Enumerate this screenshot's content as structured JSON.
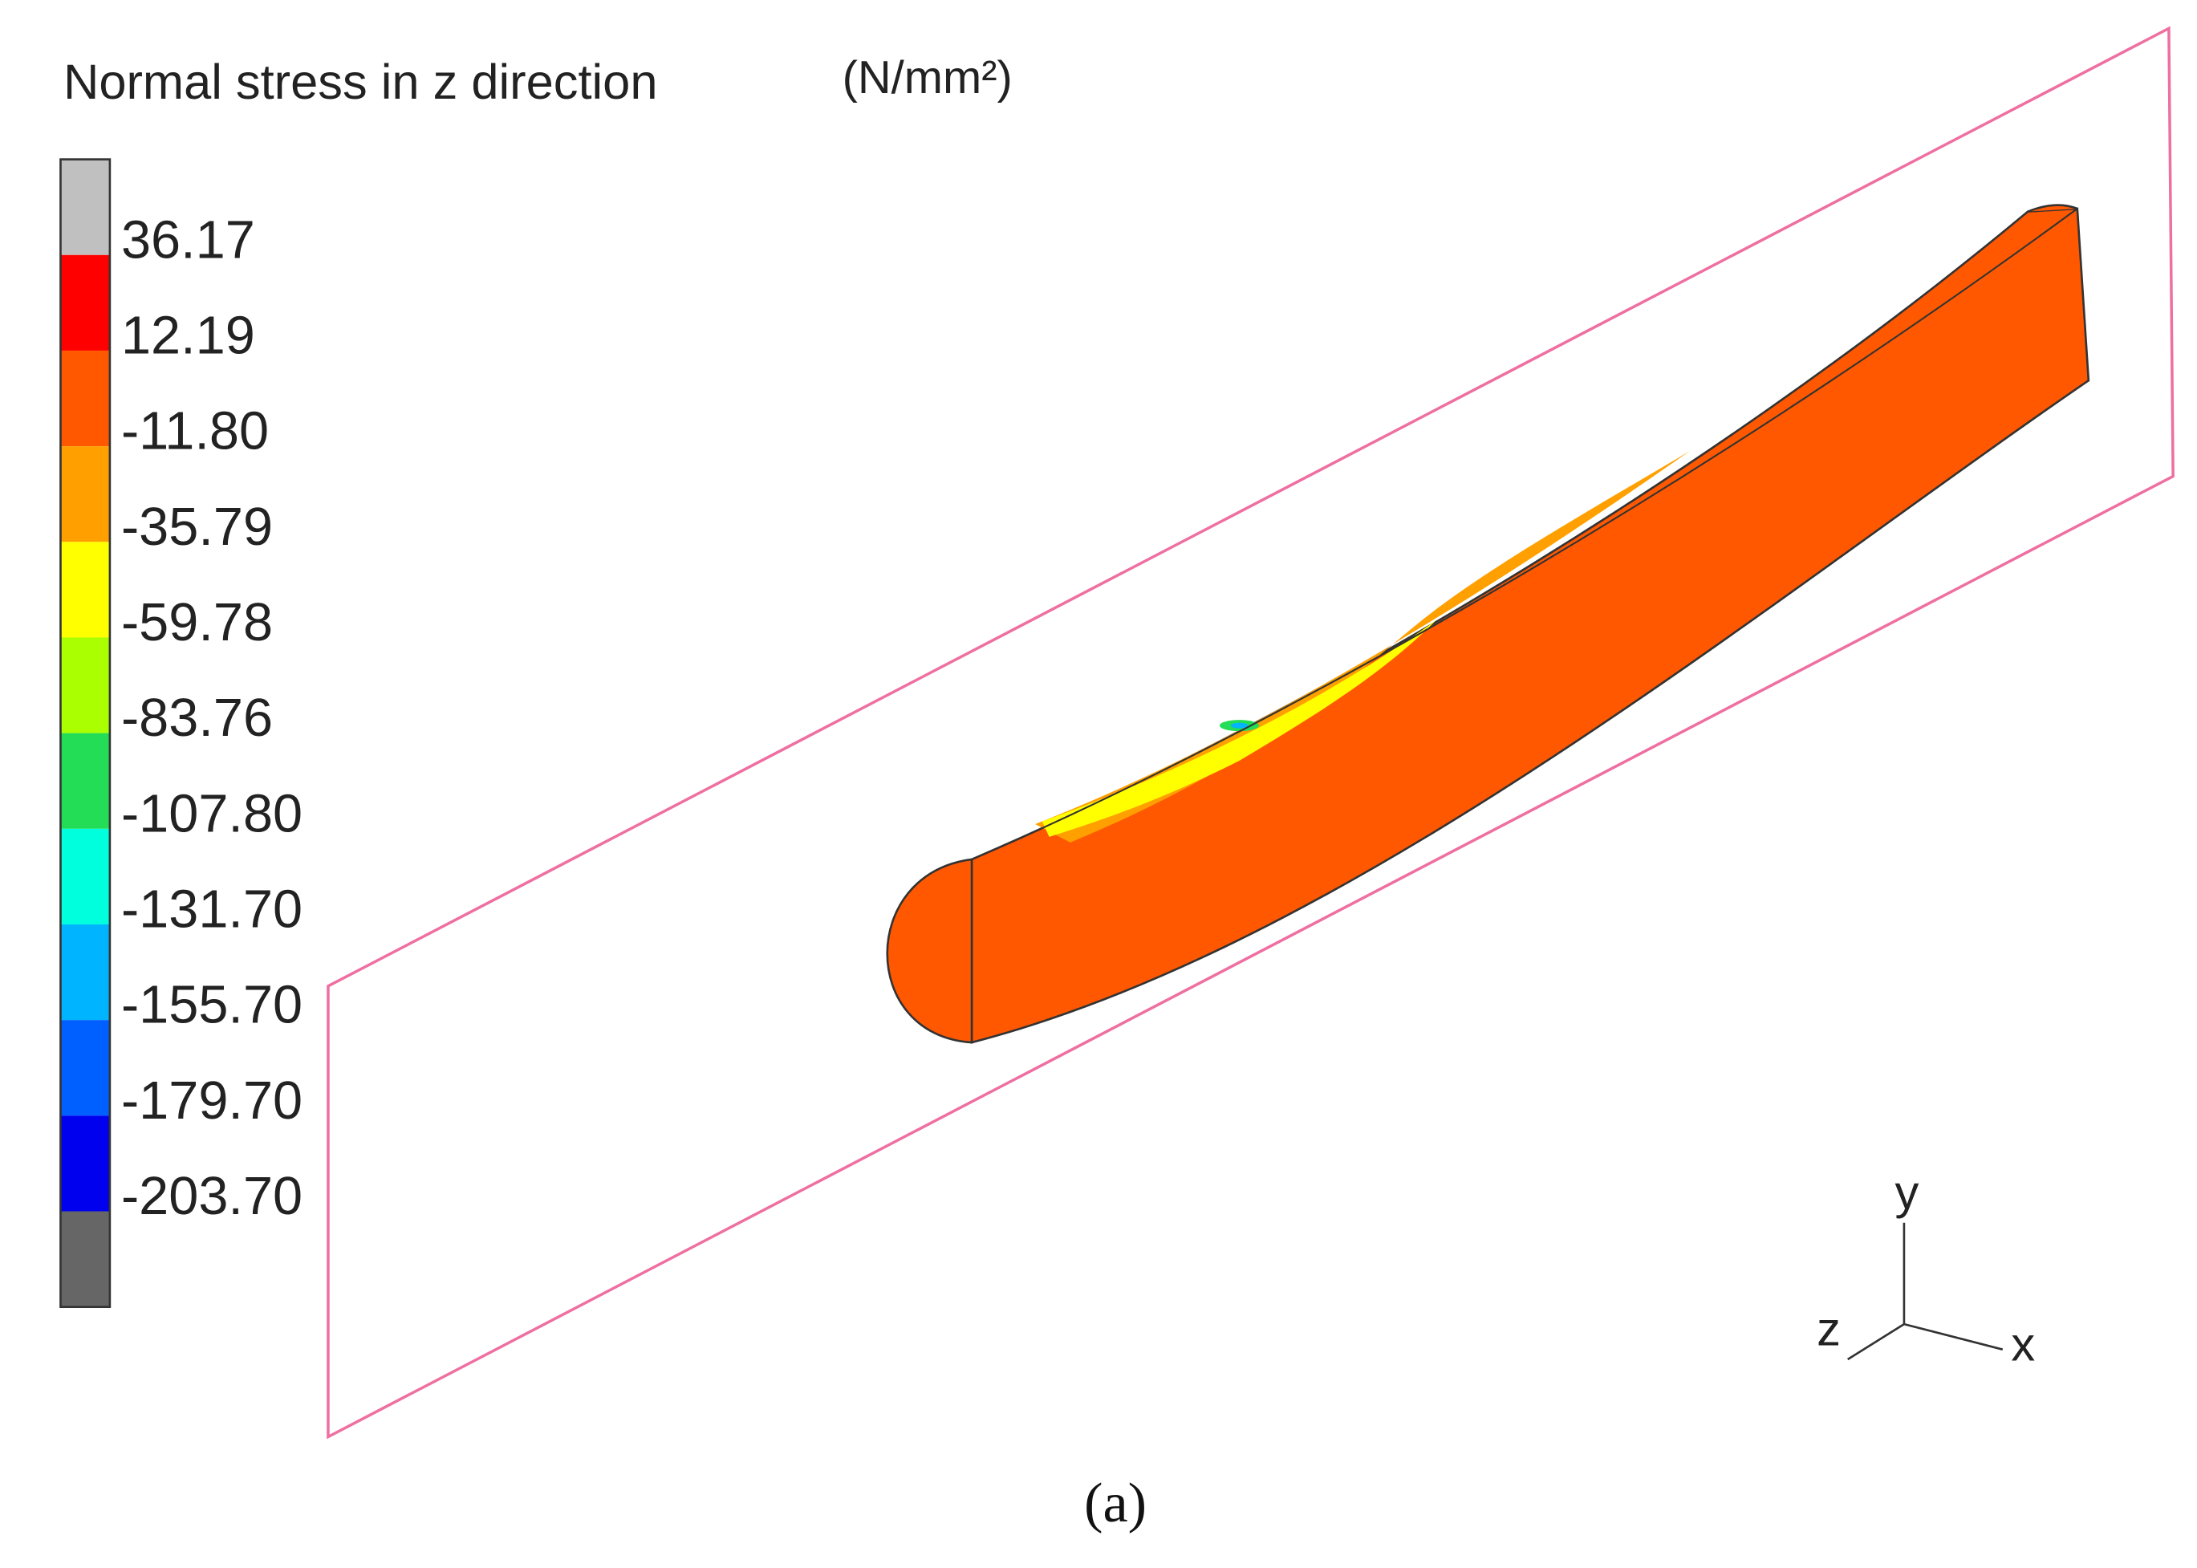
{
  "title": "Normal stress in z direction",
  "unit": "(N/mm²)",
  "legend": {
    "labels": [
      "36.17",
      "12.19",
      "-11.80",
      "-35.79",
      "-59.78",
      "-83.76",
      "-107.80",
      "-131.70",
      "-155.70",
      "-179.70",
      "-203.70"
    ],
    "colors": [
      "#c0c0c0",
      "#ff0000",
      "#ff5800",
      "#ffa000",
      "#ffff00",
      "#aaff00",
      "#22dd55",
      "#00ffdd",
      "#00b4ff",
      "#0060ff",
      "#0000ee",
      "#666666"
    ]
  },
  "axes": {
    "y": "y",
    "x": "x",
    "z": "z"
  },
  "caption": "(a)"
}
